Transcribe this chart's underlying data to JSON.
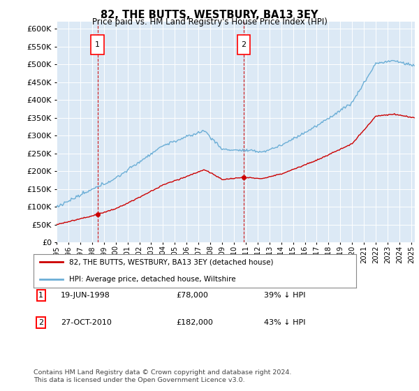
{
  "title": "82, THE BUTTS, WESTBURY, BA13 3EY",
  "subtitle": "Price paid vs. HM Land Registry's House Price Index (HPI)",
  "legend_line1": "82, THE BUTTS, WESTBURY, BA13 3EY (detached house)",
  "legend_line2": "HPI: Average price, detached house, Wiltshire",
  "footnote": "Contains HM Land Registry data © Crown copyright and database right 2024.\nThis data is licensed under the Open Government Licence v3.0.",
  "sale1_label": "1",
  "sale1_date": "19-JUN-1998",
  "sale1_price": "£78,000",
  "sale1_hpi": "39% ↓ HPI",
  "sale1_year": 1998.47,
  "sale1_value": 78000,
  "sale2_label": "2",
  "sale2_date": "27-OCT-2010",
  "sale2_price": "£182,000",
  "sale2_hpi": "43% ↓ HPI",
  "sale2_year": 2010.82,
  "sale2_value": 182000,
  "hpi_color": "#6baed6",
  "price_color": "#cc0000",
  "background_color": "#dce9f5",
  "ylim": [
    0,
    620000
  ],
  "yticks": [
    0,
    50000,
    100000,
    150000,
    200000,
    250000,
    300000,
    350000,
    400000,
    450000,
    500000,
    550000,
    600000
  ],
  "xlim_start": 1995,
  "xlim_end": 2025.3
}
